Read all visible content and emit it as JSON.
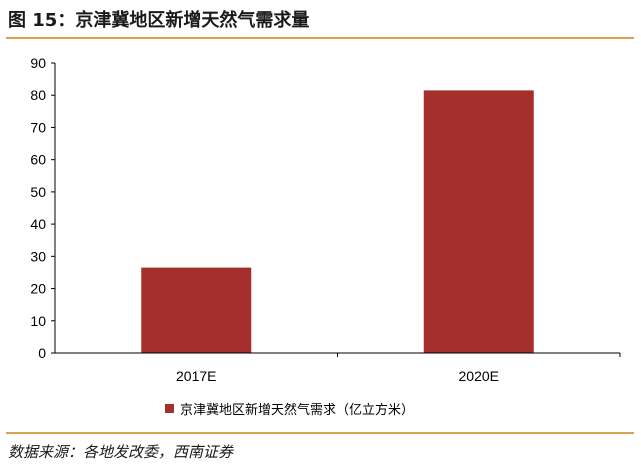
{
  "header": {
    "title": "图 15：京津冀地区新增天然气需求量"
  },
  "footer": {
    "source": "数据来源：各地发改委，西南证券"
  },
  "colors": {
    "bar": "#a52f2d",
    "accent_rule": "#d9a250",
    "axis": "#000000"
  },
  "chart_data": {
    "type": "bar",
    "categories": [
      "2017E",
      "2020E"
    ],
    "series": [
      {
        "name": "京津冀地区新增天然气需求（亿立方米）",
        "values": [
          26.5,
          81.5
        ]
      }
    ],
    "ylim": [
      0,
      90
    ],
    "yticks": [
      0,
      10,
      20,
      30,
      40,
      50,
      60,
      70,
      80,
      90
    ],
    "legend": "bottom",
    "grid": false
  }
}
